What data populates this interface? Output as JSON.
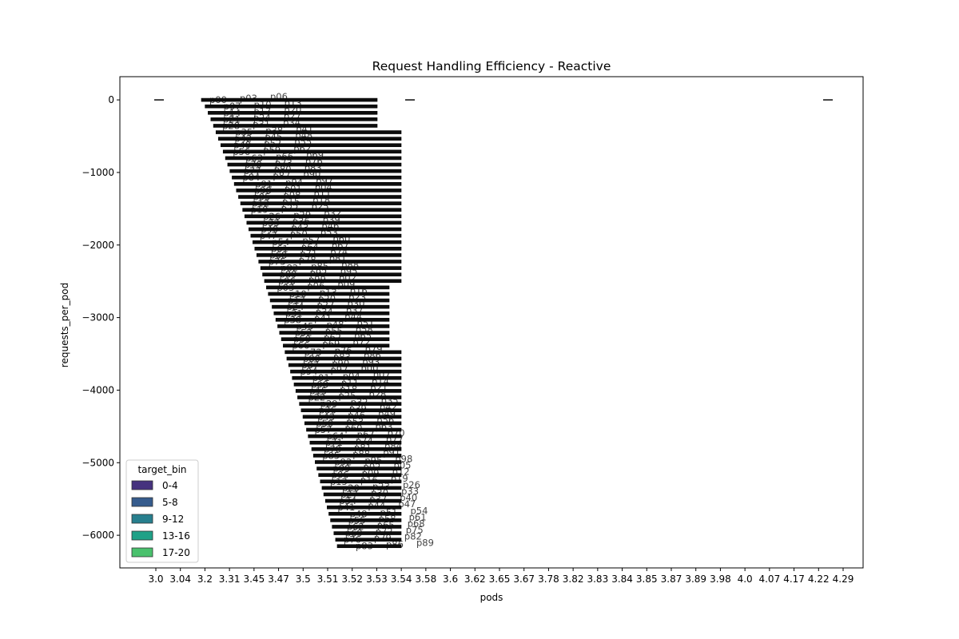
{
  "chart_data": {
    "type": "bar",
    "title": "Request Handling Efficiency - Reactive",
    "xlabel": "pods",
    "ylabel": "requests_per_pod",
    "x_tick_labels": [
      "3.0",
      "3.04",
      "3.2",
      "3.31",
      "3.45",
      "3.47",
      "3.5",
      "3.51",
      "3.52",
      "3.53",
      "3.54",
      "3.58",
      "3.6",
      "3.62",
      "3.65",
      "3.67",
      "3.78",
      "3.82",
      "3.83",
      "3.84",
      "3.85",
      "3.87",
      "3.89",
      "3.98",
      "4.0",
      "4.07",
      "4.17",
      "4.22",
      "4.29"
    ],
    "y_ticks": [
      0,
      -1000,
      -2000,
      -3000,
      -4000,
      -5000,
      -6000
    ],
    "y_tick_labels": [
      "0",
      "−1000",
      "−2000",
      "−3000",
      "−4000",
      "−5000",
      "−6000"
    ],
    "ylim": [
      -6450,
      320
    ],
    "grid": false,
    "orientation": "vertical boxes rendered as horizontal bars",
    "legend": {
      "title": "target_bin",
      "position": "lower-left",
      "entries": [
        {
          "label": "0-4",
          "color": "#46327e"
        },
        {
          "label": "5-8",
          "color": "#365c8d"
        },
        {
          "label": "9-12",
          "color": "#277f8e"
        },
        {
          "label": "13-16",
          "color": "#1fa187"
        },
        {
          "label": "17-20",
          "color": "#4ac16d"
        }
      ]
    },
    "small_markers": [
      {
        "x_label": "3.0",
        "y": 0
      },
      {
        "x_label": "3.58",
        "y": 0
      },
      {
        "x_label": "4.22",
        "y": 0
      }
    ],
    "bars_y_range": [
      -6150,
      0
    ],
    "bar_count_approx": 70,
    "annotation_text_sample": "p"
  }
}
